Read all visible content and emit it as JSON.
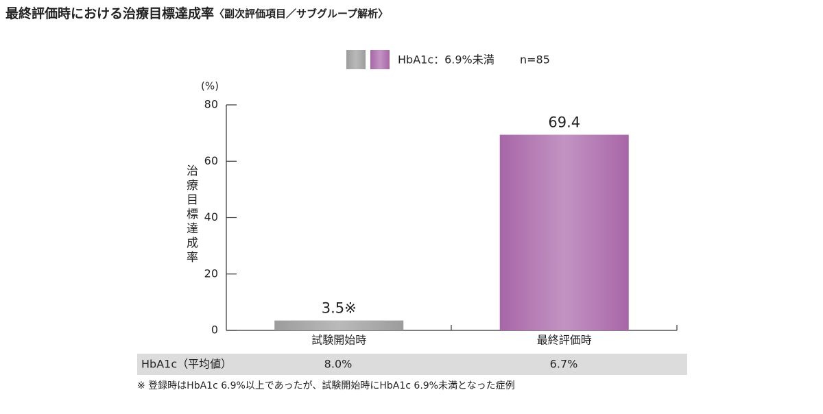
{
  "chart_data": {
    "type": "bar",
    "title": "最終評価時における治療目標達成率",
    "subtitle": "〈副次評価項目／サブグループ解析〉",
    "y_unit": "(%)",
    "y_label": "治療目標達成率",
    "categories": [
      "試験開始時",
      "最終評価時"
    ],
    "series": [
      {
        "name": "HbA1c：6.9%未満",
        "colors": [
          "#9c9c9c",
          "#a866a8"
        ],
        "values": [
          3.5,
          69.4
        ],
        "value_labels": [
          "3.5※",
          "69.4"
        ]
      }
    ],
    "n_label": "n=85",
    "ylim": [
      0,
      80
    ],
    "yticks": [
      0,
      20,
      40,
      60,
      80
    ],
    "table": {
      "header": "HbA1c（平均値）",
      "cells": [
        "8.0%",
        "6.7%"
      ]
    },
    "footnote": "※ 登録時はHbA1c 6.9%以上であったが、試験開始時にHbA1c 6.9%未満となった症例"
  }
}
